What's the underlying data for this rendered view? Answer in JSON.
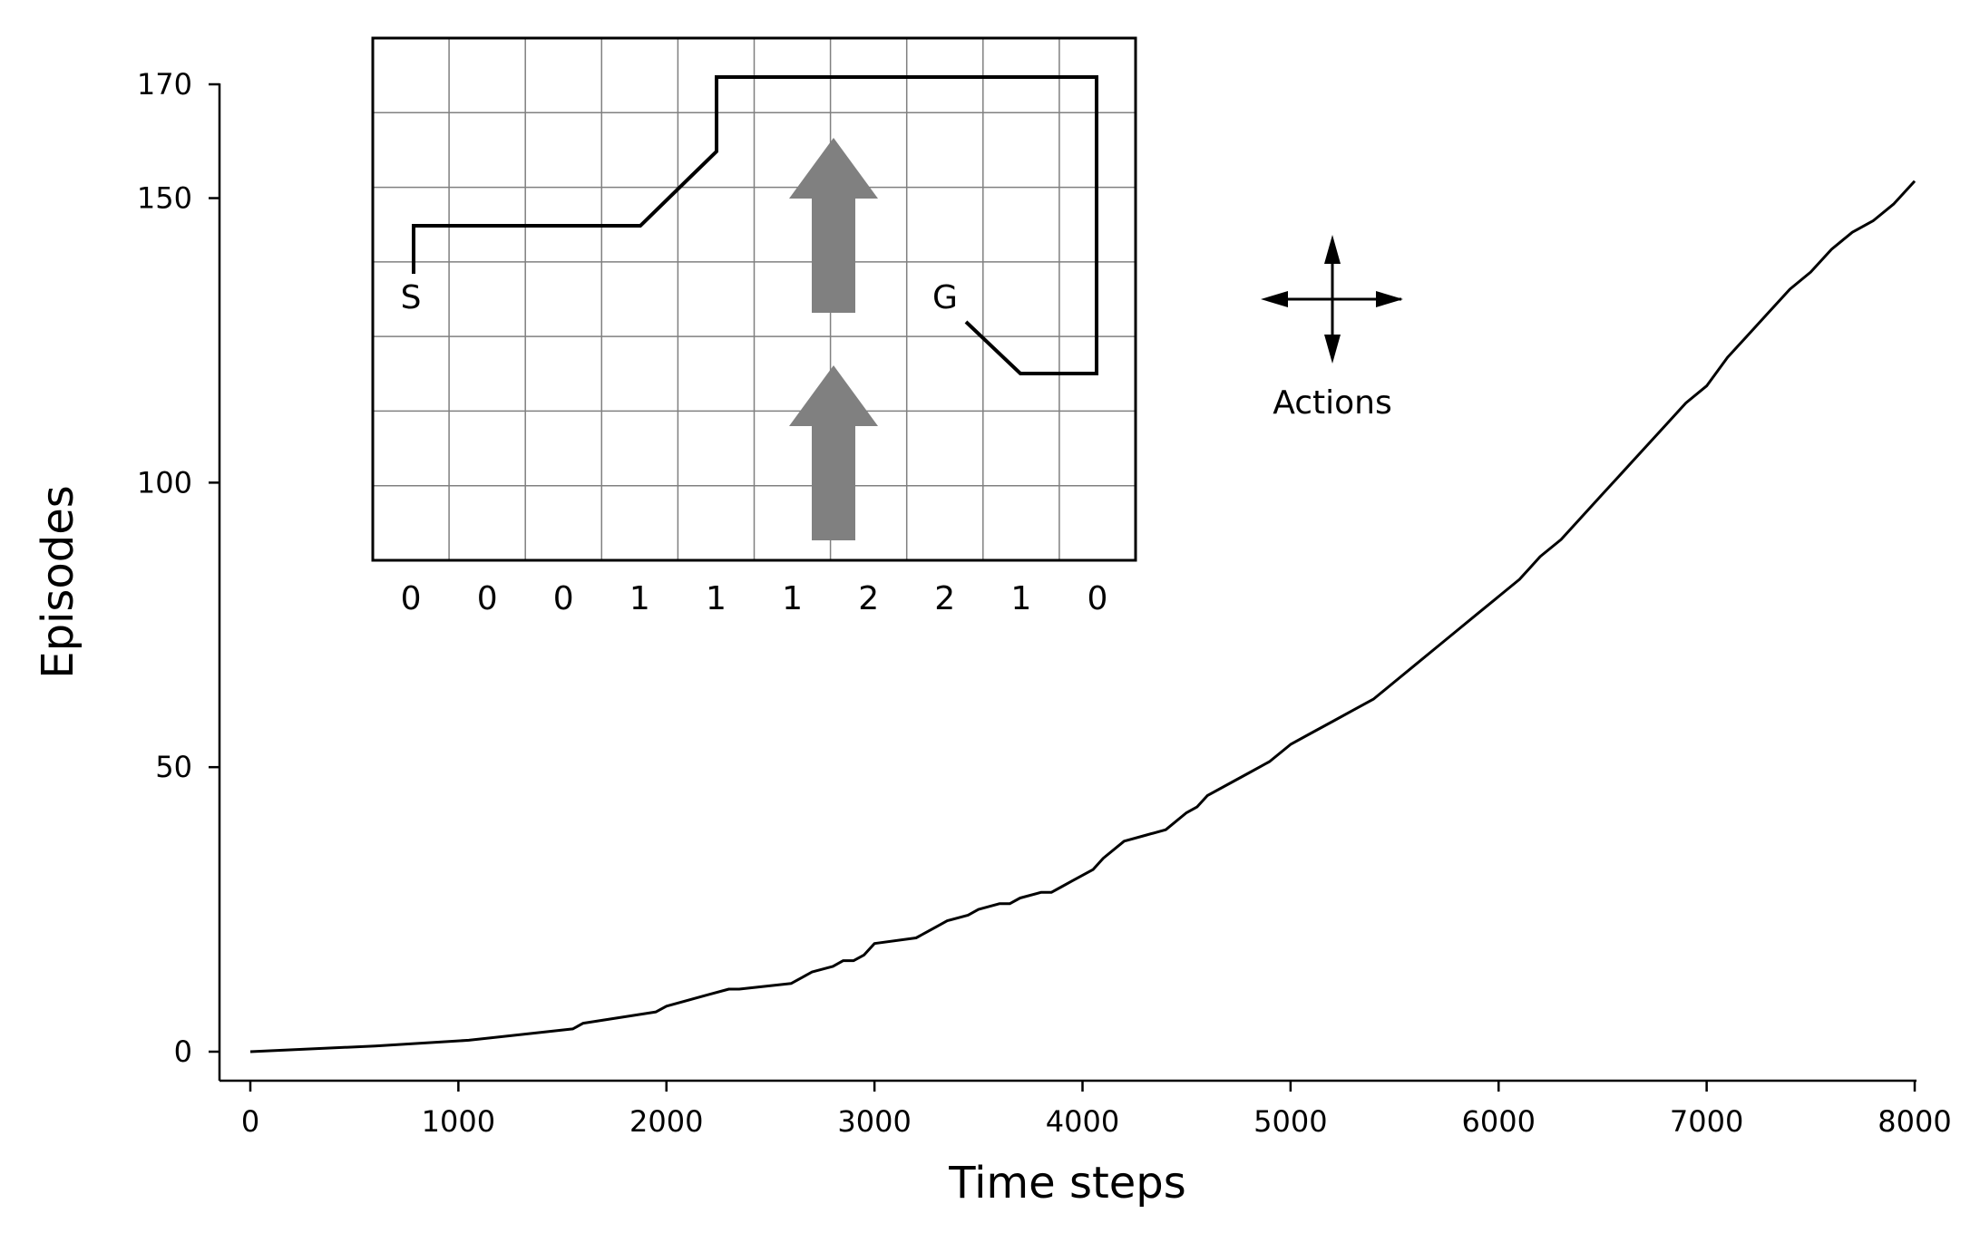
{
  "chart_data": {
    "type": "line",
    "title": "",
    "xlabel": "Time steps",
    "ylabel": "Episodes",
    "xlim": [
      0,
      8000
    ],
    "ylim": [
      0,
      170
    ],
    "xticks": [
      "0",
      "1000",
      "2000",
      "3000",
      "4000",
      "5000",
      "6000",
      "7000",
      "8000"
    ],
    "yticks": [
      "0",
      "50",
      "100",
      "150",
      "170"
    ],
    "grid": false,
    "series": [
      {
        "name": "",
        "color": "#000000",
        "x": [
          0,
          600,
          1050,
          1550,
          1600,
          1950,
          2000,
          2200,
          2300,
          2350,
          2600,
          2650,
          2700,
          2800,
          2850,
          2900,
          2950,
          3000,
          3200,
          3250,
          3300,
          3350,
          3450,
          3500,
          3600,
          3650,
          3700,
          3800,
          3850,
          3900,
          3950,
          4000,
          4050,
          4100,
          4200,
          4300,
          4400,
          4500,
          4550,
          4600,
          4700,
          4800,
          4850,
          4900,
          5000,
          5100,
          5200,
          5300,
          5400,
          5500,
          5600,
          5700,
          5800,
          5900,
          6000,
          6100,
          6150,
          6200,
          6300,
          6400,
          6500,
          6600,
          6700,
          6800,
          6900,
          7000,
          7100,
          7200,
          7300,
          7400,
          7500,
          7600,
          7700,
          7800,
          7900,
          8000
        ],
        "y": [
          0,
          1,
          2,
          4,
          5,
          7,
          8,
          10,
          11,
          11,
          12,
          13,
          14,
          15,
          16,
          16,
          17,
          19,
          20,
          21,
          22,
          23,
          24,
          25,
          26,
          26,
          27,
          28,
          28,
          29,
          30,
          31,
          32,
          34,
          37,
          38,
          39,
          42,
          43,
          45,
          47,
          49,
          50,
          51,
          54,
          56,
          58,
          60,
          62,
          65,
          68,
          71,
          74,
          77,
          80,
          83,
          85,
          87,
          90,
          94,
          98,
          102,
          106,
          110,
          114,
          117,
          122,
          126,
          130,
          134,
          137,
          141,
          144,
          146,
          149,
          153
        ]
      }
    ]
  },
  "inset": {
    "start_label": "S",
    "goal_label": "G",
    "wind_strengths": [
      "0",
      "0",
      "0",
      "1",
      "1",
      "1",
      "2",
      "2",
      "1",
      "0"
    ],
    "actions_label": "Actions",
    "wind_arrow_color": "#808080",
    "arrow_icon": "four-way-arrow-icon"
  }
}
